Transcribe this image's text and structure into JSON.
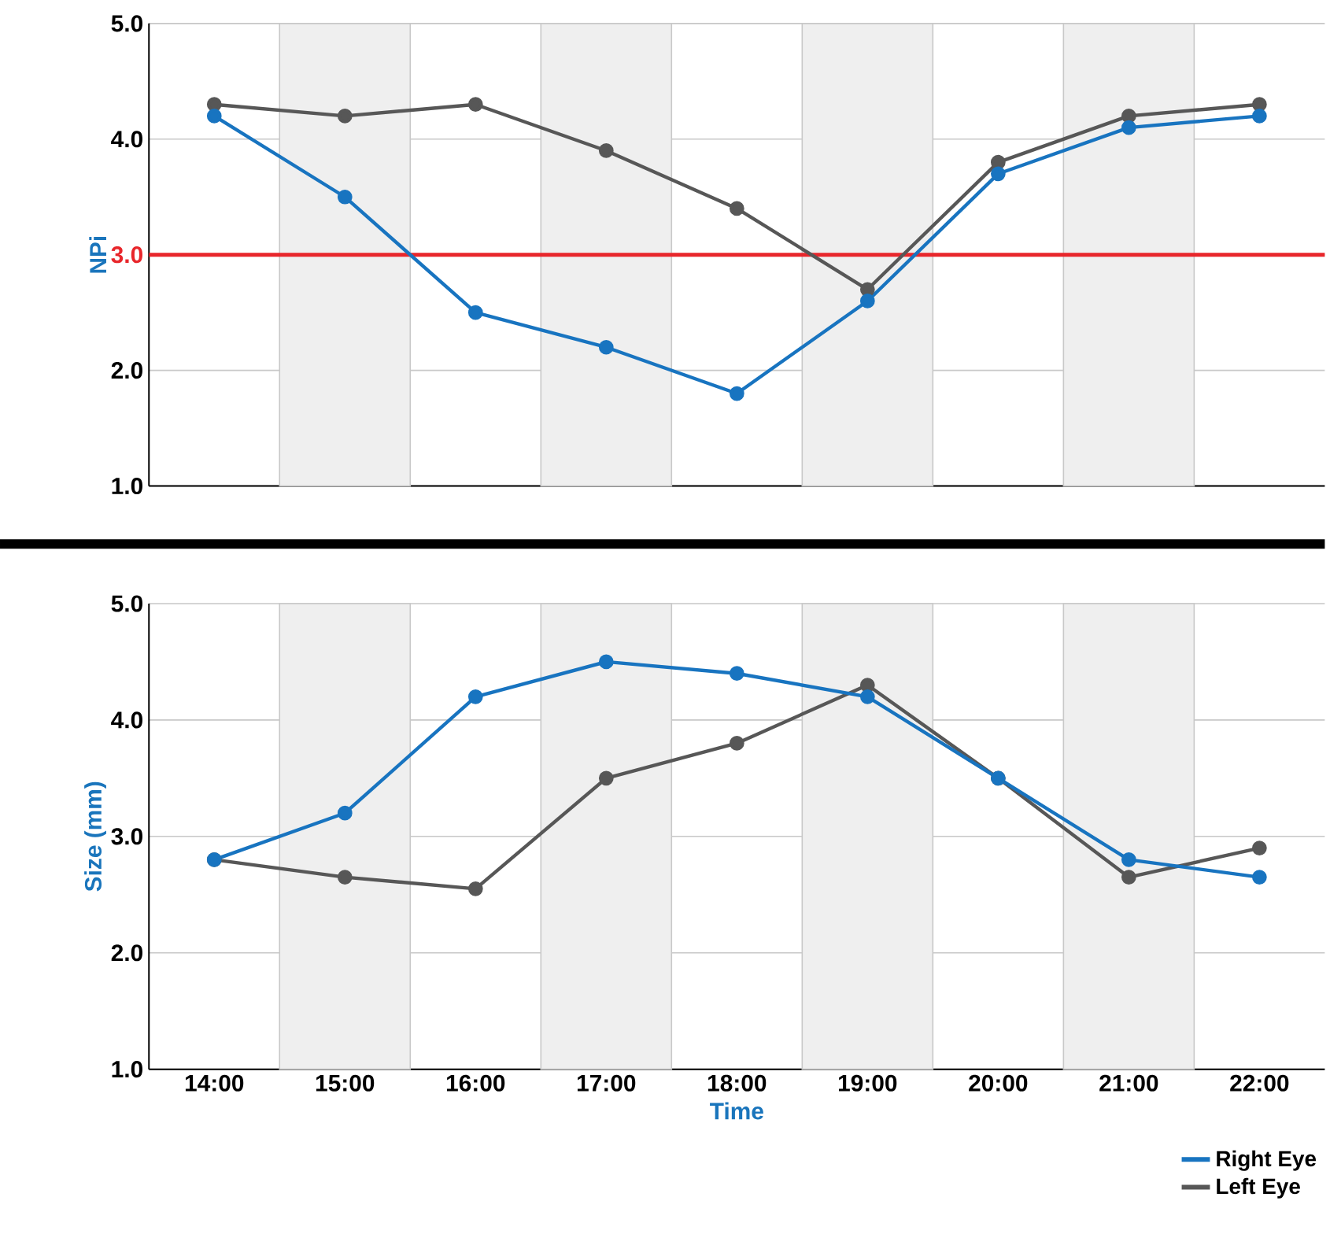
{
  "chart_data": [
    {
      "type": "line",
      "ylabel": "NPi",
      "x": [
        14,
        15,
        16,
        17,
        18,
        19,
        20,
        21,
        22
      ],
      "xlim": [
        13.5,
        22.5
      ],
      "ylim": [
        1,
        5
      ],
      "yticks": [
        {
          "value": 1,
          "label": "1.0"
        },
        {
          "value": 2,
          "label": "2.0"
        },
        {
          "value": 3,
          "label": "3.0"
        },
        {
          "value": 4,
          "label": "4.0"
        },
        {
          "value": 5,
          "label": "5.0"
        }
      ],
      "tick_labels": "y",
      "grid": "y",
      "marker": "circle",
      "line_style": "solid",
      "series": [
        {
          "color": "#575757",
          "values": [
            4.3,
            4.2,
            4.3,
            3.9,
            3.4,
            2.7,
            3.8,
            4.2,
            4.3
          ]
        },
        {
          "color": "#1874c0",
          "values": [
            4.2,
            3.5,
            2.5,
            2.2,
            1.8,
            2.6,
            3.7,
            4.1,
            4.2
          ]
        }
      ],
      "ref_lines": [
        {
          "axis": "y",
          "value": 3,
          "color": "#e8262b"
        }
      ],
      "bands": [
        {
          "axis": "x",
          "from": 14.5,
          "to": 15.5,
          "color": "#efefef"
        },
        {
          "axis": "x",
          "from": 16.5,
          "to": 17.5,
          "color": "#efefef"
        },
        {
          "axis": "x",
          "from": 18.5,
          "to": 19.5,
          "color": "#efefef"
        },
        {
          "axis": "x",
          "from": 20.5,
          "to": 21.5,
          "color": "#efefef"
        }
      ]
    },
    {
      "type": "line",
      "ylabel": "Size (mm)",
      "xlabel": "Time",
      "x": [
        14,
        15,
        16,
        17,
        18,
        19,
        20,
        21,
        22
      ],
      "xlim": [
        13.5,
        22.5
      ],
      "ylim": [
        1,
        5
      ],
      "yticks": [
        {
          "value": 1,
          "label": "1.0"
        },
        {
          "value": 2,
          "label": "2.0"
        },
        {
          "value": 3,
          "label": "3.0"
        },
        {
          "value": 4,
          "label": "4.0"
        },
        {
          "value": 5,
          "label": "5.0"
        }
      ],
      "xticks": [
        {
          "value": 14,
          "label": "14:00"
        },
        {
          "value": 15,
          "label": "15:00"
        },
        {
          "value": 16,
          "label": "16:00"
        },
        {
          "value": 17,
          "label": "17:00"
        },
        {
          "value": 18,
          "label": "18:00"
        },
        {
          "value": 19,
          "label": "19:00"
        },
        {
          "value": 20,
          "label": "20:00"
        },
        {
          "value": 21,
          "label": "21:00"
        },
        {
          "value": 22,
          "label": "22:00"
        }
      ],
      "grid": "y",
      "marker": "circle",
      "line_style": "solid",
      "legend": "bottom right",
      "series": [
        {
          "name": "Left Eye",
          "color": "#575757",
          "values": [
            2.8,
            2.65,
            2.55,
            3.5,
            3.8,
            4.3,
            3.5,
            2.65,
            2.9
          ]
        },
        {
          "name": "Right Eye",
          "color": "#1874c0",
          "values": [
            2.8,
            3.2,
            4.2,
            4.5,
            4.4,
            4.2,
            3.5,
            2.8,
            2.65
          ]
        }
      ],
      "bands": [
        {
          "axis": "x",
          "from": 14.5,
          "to": 15.5,
          "color": "#efefef"
        },
        {
          "axis": "x",
          "from": 16.5,
          "to": 17.5,
          "color": "#efefef"
        },
        {
          "axis": "x",
          "from": 18.5,
          "to": 19.5,
          "color": "#efefef"
        },
        {
          "axis": "x",
          "from": 20.5,
          "to": 21.5,
          "color": "#efefef"
        }
      ]
    }
  ]
}
